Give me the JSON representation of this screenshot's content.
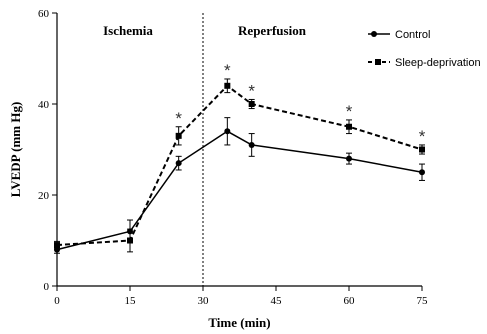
{
  "chart_data": {
    "type": "line",
    "xlabel": "Time (min)",
    "ylabel": "LVEDP (mm Hg)",
    "xlim": [
      0,
      75
    ],
    "ylim": [
      0,
      60
    ],
    "xticks": [
      0,
      15,
      30,
      45,
      60,
      75
    ],
    "yticks": [
      0,
      20,
      40,
      60
    ],
    "xtick_labels": [
      "0",
      "15",
      "30",
      "45",
      "60",
      "75"
    ],
    "ytick_labels": [
      "0",
      "20",
      "40",
      "60"
    ],
    "grid": false,
    "legend_position": "top-right",
    "phase_divider_x": 30,
    "annotations": [
      "Ischemia",
      "Reperfusion"
    ],
    "significance_marker": "*",
    "significant_x": [
      25,
      35,
      40,
      60,
      75
    ],
    "series": [
      {
        "name": "Control",
        "style": "solid",
        "marker": "circle",
        "color": "#000000",
        "x": [
          0,
          15,
          25,
          35,
          40,
          60,
          75
        ],
        "y": [
          8,
          12,
          27,
          34,
          31,
          28,
          25
        ],
        "err": [
          0.8,
          2.5,
          1.5,
          3,
          2.5,
          1.2,
          1.8
        ]
      },
      {
        "name": "Sleep-deprivation",
        "style": "dashed",
        "marker": "square",
        "color": "#000000",
        "x": [
          0,
          15,
          25,
          35,
          40,
          60,
          75
        ],
        "y": [
          9,
          10,
          33,
          44,
          40,
          35,
          30
        ],
        "err": [
          0.8,
          2.5,
          2,
          1.5,
          1,
          1.5,
          1
        ]
      }
    ]
  }
}
